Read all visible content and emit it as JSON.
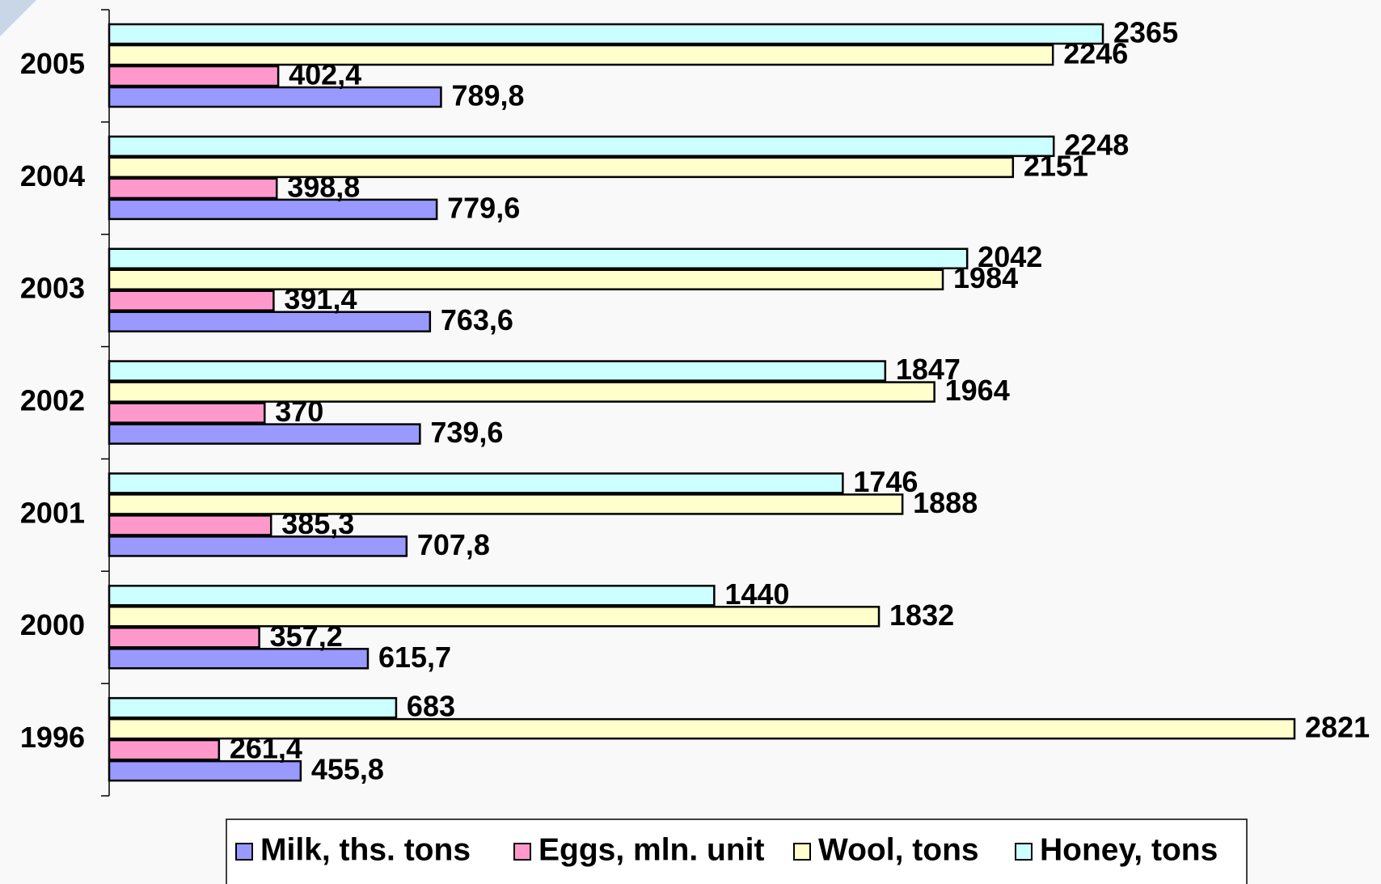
{
  "chart_data": {
    "type": "bar",
    "orientation": "horizontal",
    "categories": [
      "1996",
      "2000",
      "2001",
      "2002",
      "2003",
      "2004",
      "2005"
    ],
    "series": [
      {
        "name": "Milk, ths. tons",
        "color": "#9999ff",
        "values": [
          455.8,
          615.7,
          707.8,
          739.6,
          763.6,
          779.6,
          789.8
        ],
        "value_labels": [
          "455,8",
          "615,7",
          "707,8",
          "739,6",
          "763,6",
          "779,6",
          "789,8"
        ]
      },
      {
        "name": "Eggs, mln. unit",
        "color": "#ff99cc",
        "values": [
          261.4,
          357.2,
          385.3,
          370,
          391.4,
          398.8,
          402.4
        ],
        "value_labels": [
          "261,4",
          "357,2",
          "385,3",
          "370",
          "391,4",
          "398,8",
          "402,4"
        ]
      },
      {
        "name": "Wool, tons",
        "color": "#ffffcc",
        "values": [
          2821,
          1832,
          1888,
          1964,
          1984,
          2151,
          2246
        ],
        "value_labels": [
          "2821",
          "1832",
          "1888",
          "1964",
          "1984",
          "2151",
          "2246"
        ]
      },
      {
        "name": "Honey, tons",
        "color": "#ccffff",
        "values": [
          683,
          1440,
          1746,
          1847,
          2042,
          2248,
          2365
        ],
        "value_labels": [
          "683",
          "1440",
          "1746",
          "1847",
          "2042",
          "2248",
          "2365"
        ]
      }
    ],
    "legend": "bottom"
  }
}
